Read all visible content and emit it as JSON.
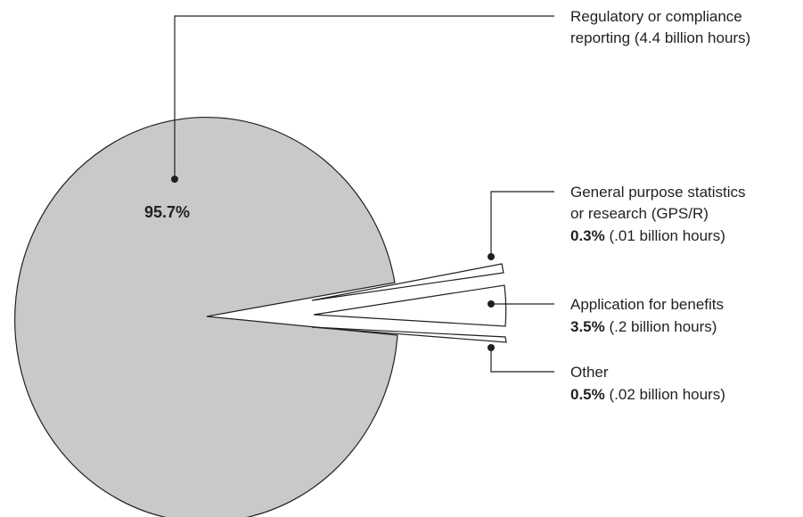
{
  "chart_data": {
    "type": "pie",
    "slices": [
      {
        "category": "Regulatory or compliance reporting",
        "percent": 95.7,
        "percent_label": "95.7%",
        "label_lines": [
          "Regulatory or compliance",
          "reporting (4.4 billion hours)"
        ],
        "detail": "",
        "color": "#c8c9cb"
      },
      {
        "category": "General purpose statistics or research (GPS/R)",
        "percent": 0.3,
        "percent_label": "0.3%",
        "label_lines": [
          "General purpose statistics",
          "or research (GPS/R)"
        ],
        "detail": "(.01 billion hours)",
        "color": "#ffffff"
      },
      {
        "category": "Application for benefits",
        "percent": 3.5,
        "percent_label": "3.5%",
        "label_lines": [
          "Application for benefits"
        ],
        "detail": "(.2 billion hours)",
        "color": "#ffffff"
      },
      {
        "category": "Other",
        "percent": 0.5,
        "percent_label": "0.5%",
        "label_lines": [
          "Other"
        ],
        "detail": "(.02 billion hours)",
        "color": "#ffffff"
      }
    ],
    "legend": "callouts-right",
    "grid": false
  }
}
